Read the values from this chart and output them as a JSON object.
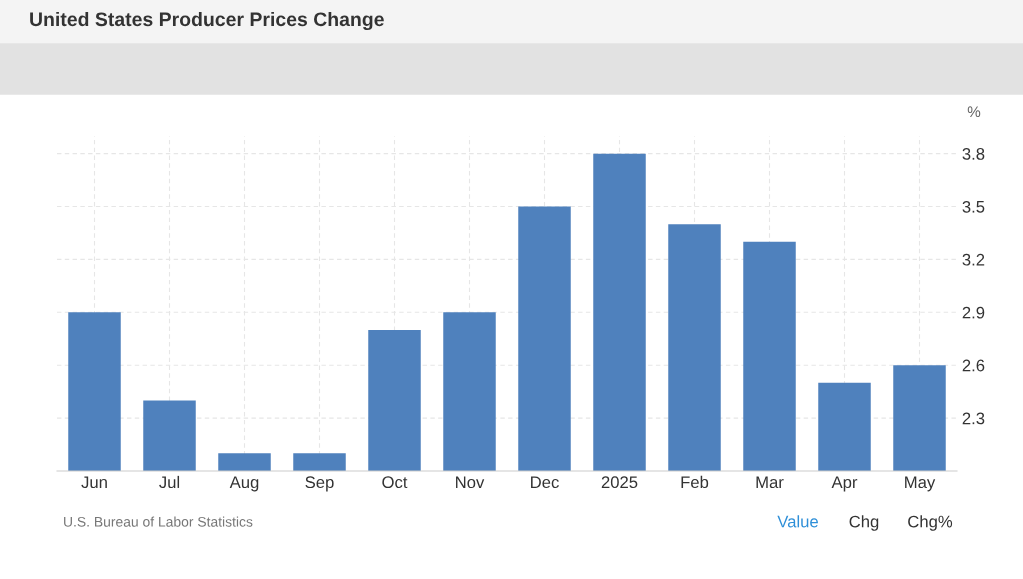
{
  "chart_data": {
    "type": "bar",
    "title": "United States Producer Prices Change",
    "ylabel": "%",
    "categories": [
      "Jun",
      "Jul",
      "Aug",
      "Sep",
      "Oct",
      "Nov",
      "Dec",
      "2025",
      "Feb",
      "Mar",
      "Apr",
      "May"
    ],
    "values": [
      2.9,
      2.4,
      2.1,
      2.1,
      2.8,
      2.9,
      3.5,
      3.8,
      3.4,
      3.3,
      2.5,
      2.6
    ],
    "color": "#4f81bd",
    "ylim": [
      2.0,
      3.9
    ],
    "yticks": [
      2.3,
      2.6,
      2.9,
      3.2,
      3.5,
      3.8
    ],
    "grid": true,
    "legend": false,
    "annotations": [
      "U.S. Bureau of Labor Statistics",
      "Value",
      "Chg",
      "Chg%"
    ]
  }
}
